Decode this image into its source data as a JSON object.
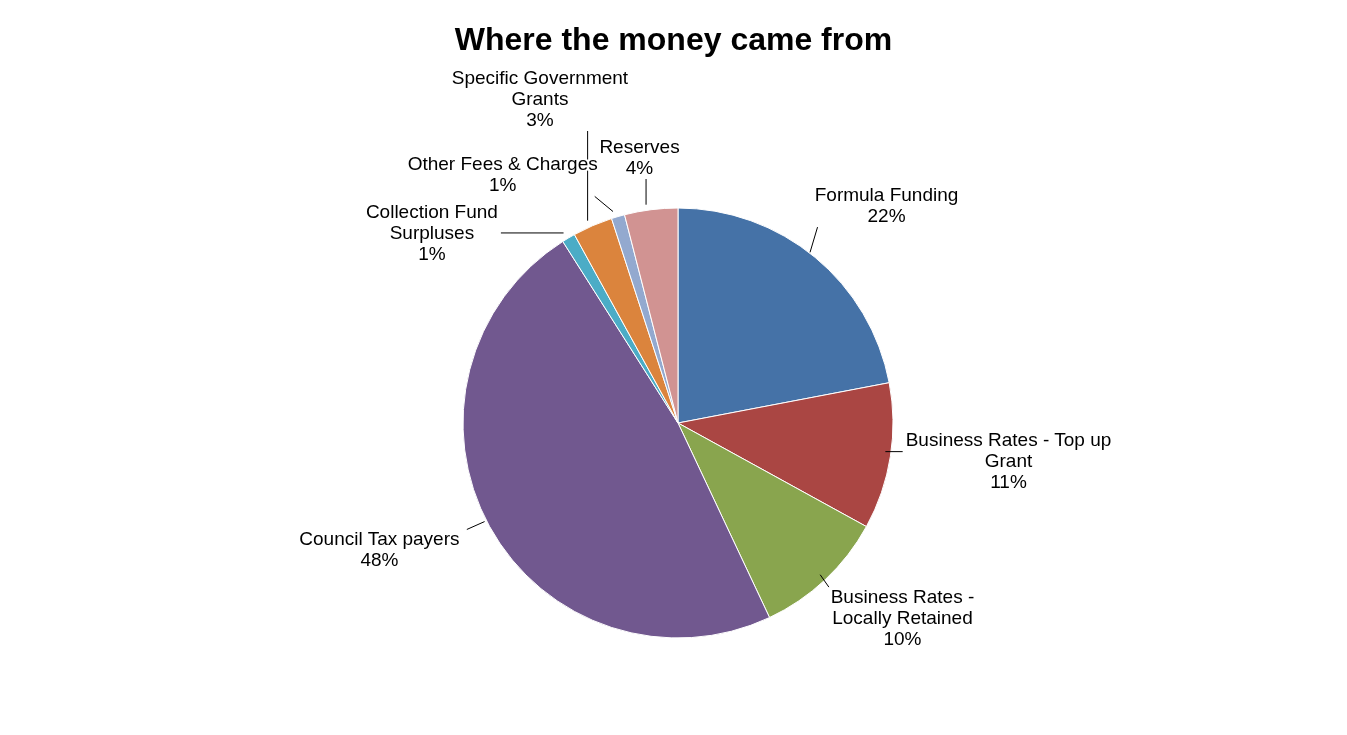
{
  "chart_data": {
    "type": "pie",
    "title": "Where the money came from",
    "categories": [
      "Formula Funding",
      "Business Rates - Top up Grant",
      "Business Rates - Locally Retained",
      "Council Tax  payers",
      "Collection Fund Surpluses",
      "Specific Government Grants",
      "Other Fees & Charges",
      "Reserves"
    ],
    "values": [
      22,
      11,
      10,
      48,
      1,
      3,
      1,
      4
    ],
    "value_labels": [
      "22%",
      "11%",
      "10%",
      "48%",
      "1%",
      "3%",
      "1%",
      "4%"
    ],
    "colors": [
      "#4572a7",
      "#aa4643",
      "#89a54e",
      "#71588f",
      "#4bacc6",
      "#db843d",
      "#93a9cf",
      "#d19392"
    ]
  }
}
